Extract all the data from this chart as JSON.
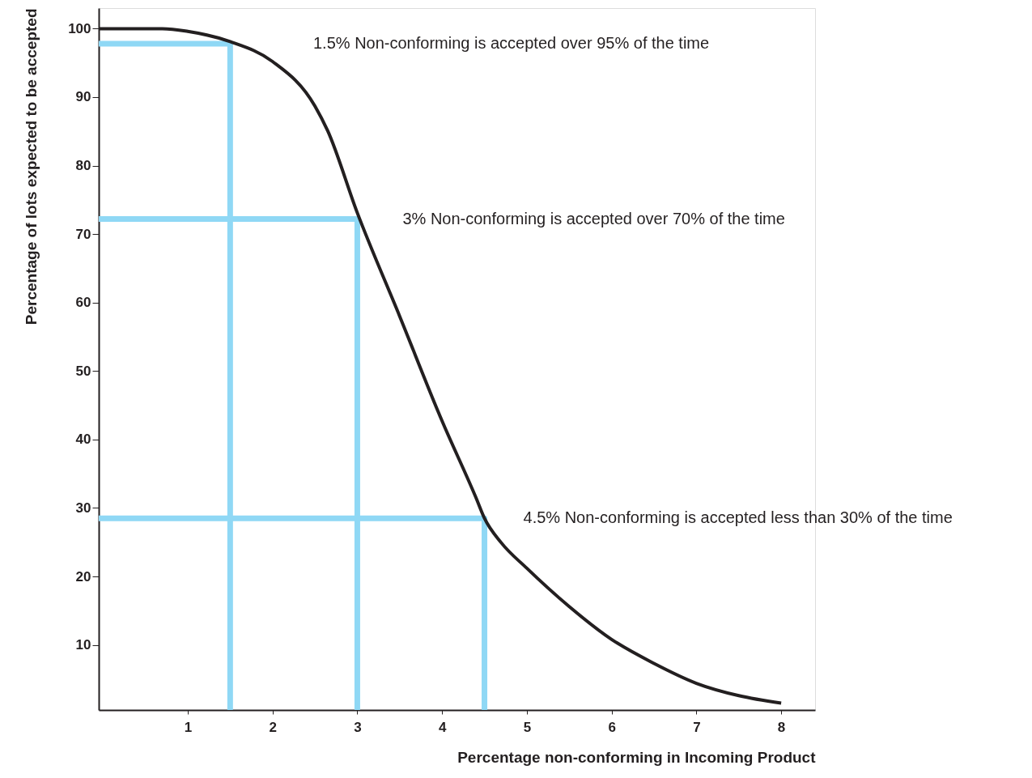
{
  "chart_data": {
    "type": "line",
    "xlabel": "Percentage non-conforming in Incoming Product",
    "ylabel": "Percentage of lots expected to be accepted",
    "xlim": [
      -0.05,
      8.4
    ],
    "ylim": [
      0.5,
      103
    ],
    "xticks": [
      1,
      2,
      3,
      4,
      5,
      6,
      7,
      8
    ],
    "yticks": [
      10,
      20,
      30,
      40,
      50,
      60,
      70,
      80,
      90,
      100
    ],
    "grid": false,
    "series": [
      {
        "color": "#8fd8f5",
        "x": [
          -0.05,
          1.5,
          1.5
        ],
        "values": [
          97.8,
          97.8,
          0.5
        ]
      },
      {
        "color": "#8fd8f5",
        "x": [
          -0.05,
          3,
          3
        ],
        "values": [
          72.2,
          72.2,
          0.5
        ]
      },
      {
        "color": "#8fd8f5",
        "x": [
          -0.05,
          4.5,
          4.5
        ],
        "values": [
          28.5,
          28.5,
          0.5
        ]
      },
      {
        "color": "#231f20",
        "x": [
          -0.05,
          0.7,
          1.0,
          1.5,
          2.0,
          2.5,
          2.65,
          3.0,
          3.5,
          4.0,
          4.4,
          4.5,
          4.7,
          5.0,
          5.5,
          6.0,
          6.5,
          7.0,
          7.5,
          8.0
        ],
        "values": [
          100,
          100,
          99.6,
          98.1,
          95.2,
          88.7,
          85.1,
          73.1,
          58,
          42.7,
          31.5,
          28.5,
          24.9,
          21.2,
          15.6,
          10.8,
          7.3,
          4.4,
          2.6,
          1.5
        ]
      }
    ],
    "annotations": [
      "1.5% Non-conforming is accepted over 95% of the time",
      {
        "text": "3% Non-conforming is accepted over 70% of the time",
        "x": 3,
        "y": 72.2
      },
      {
        "text": "4.5% Non-conforming is accepted less than 30% of the time",
        "x": 4.5,
        "y": 28.5
      }
    ]
  }
}
